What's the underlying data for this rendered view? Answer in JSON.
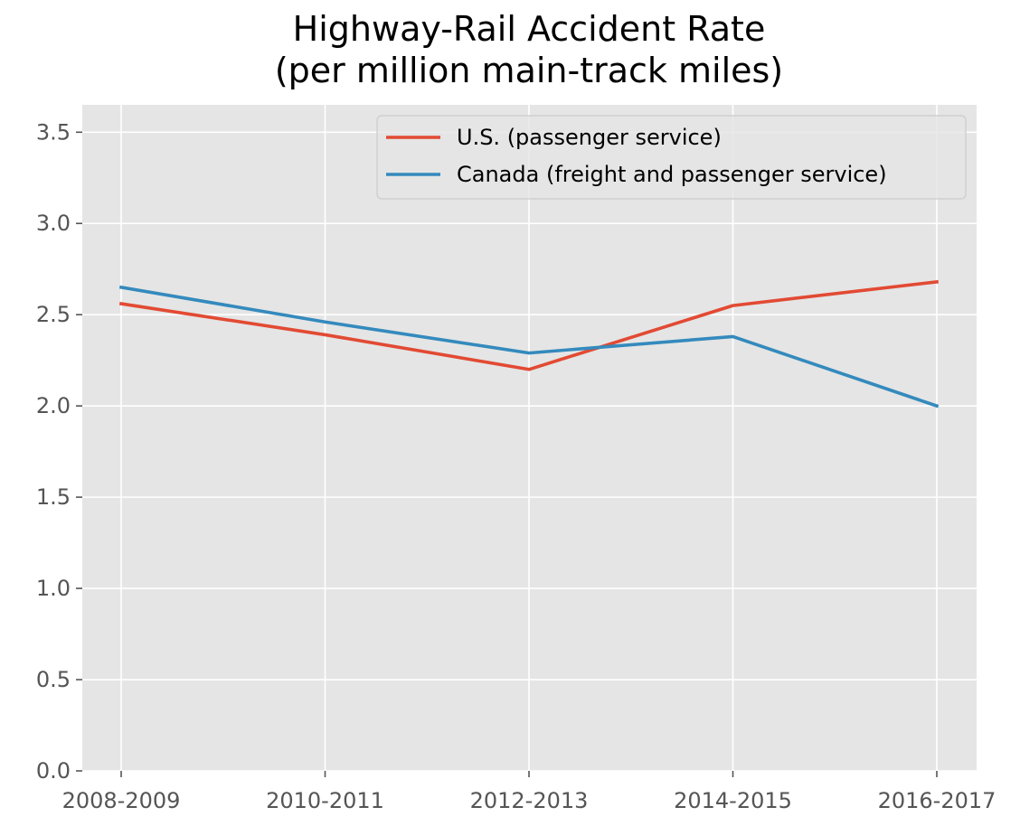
{
  "chart_data": {
    "type": "line",
    "title": "Highway-Rail Accident Rate",
    "subtitle": "(per million main-track miles)",
    "xlabel": "",
    "ylabel": "",
    "categories": [
      "2008-2009",
      "2010-2011",
      "2012-2013",
      "2014-2015",
      "2016-2017"
    ],
    "ylim": [
      0,
      3.65
    ],
    "yticks": [
      "0.0",
      "0.5",
      "1.0",
      "1.5",
      "2.0",
      "2.5",
      "3.0",
      "3.5"
    ],
    "grid": true,
    "legend_position": "top-right",
    "series": [
      {
        "name": "U.S. (passenger service)",
        "color": "#E24A33",
        "values": [
          2.56,
          2.39,
          2.2,
          2.55,
          2.68
        ]
      },
      {
        "name": "Canada (freight and passenger service)",
        "color": "#348ABD",
        "values": [
          2.65,
          2.46,
          2.29,
          2.38,
          2.0
        ]
      }
    ]
  }
}
